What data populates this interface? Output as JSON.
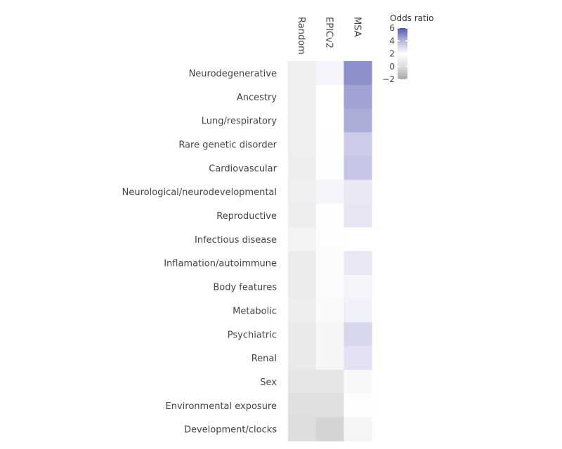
{
  "chart_data": {
    "type": "heatmap",
    "columns": [
      "Random",
      "EPICv2",
      "MSA"
    ],
    "rows": [
      "Neurodegenerative",
      "Ancestry",
      "Lung/respiratory",
      "Rare genetic disorder",
      "Cardiovascular",
      "Neurological/neurodevelopmental",
      "Reproductive",
      "Infectious disease",
      "Inflamation/autoimmune",
      "Body features",
      "Metabolic",
      "Psychiatric",
      "Renal",
      "Sex",
      "Environmental exposure",
      "Development/clocks"
    ],
    "values": [
      [
        1.1,
        2.3,
        4.8
      ],
      [
        1.1,
        2.0,
        4.4
      ],
      [
        1.1,
        2.0,
        4.2
      ],
      [
        1.1,
        1.9,
        3.4
      ],
      [
        1.0,
        1.95,
        3.6
      ],
      [
        1.1,
        2.3,
        2.6
      ],
      [
        1.0,
        1.95,
        2.7
      ],
      [
        1.3,
        1.9,
        2.0
      ],
      [
        0.9,
        1.8,
        2.6
      ],
      [
        0.9,
        1.8,
        2.3
      ],
      [
        1.0,
        1.7,
        2.4
      ],
      [
        0.8,
        1.5,
        3.1
      ],
      [
        0.8,
        1.5,
        2.8
      ],
      [
        0.5,
        0.5,
        1.6
      ],
      [
        0.2,
        0.2,
        1.9
      ],
      [
        0.1,
        -0.3,
        1.4
      ]
    ],
    "legend": {
      "title": "Odds ratio",
      "ticks": [
        "6",
        "4",
        "2",
        "0",
        "−2"
      ],
      "range": [
        -2,
        6
      ],
      "colors": {
        "-2": "#a8a8a8",
        "0": "#dcdcdc",
        "2": "#ffffff",
        "4": "#b6b6de",
        "6": "#4e58aa"
      },
      "placement": "top-right"
    }
  }
}
